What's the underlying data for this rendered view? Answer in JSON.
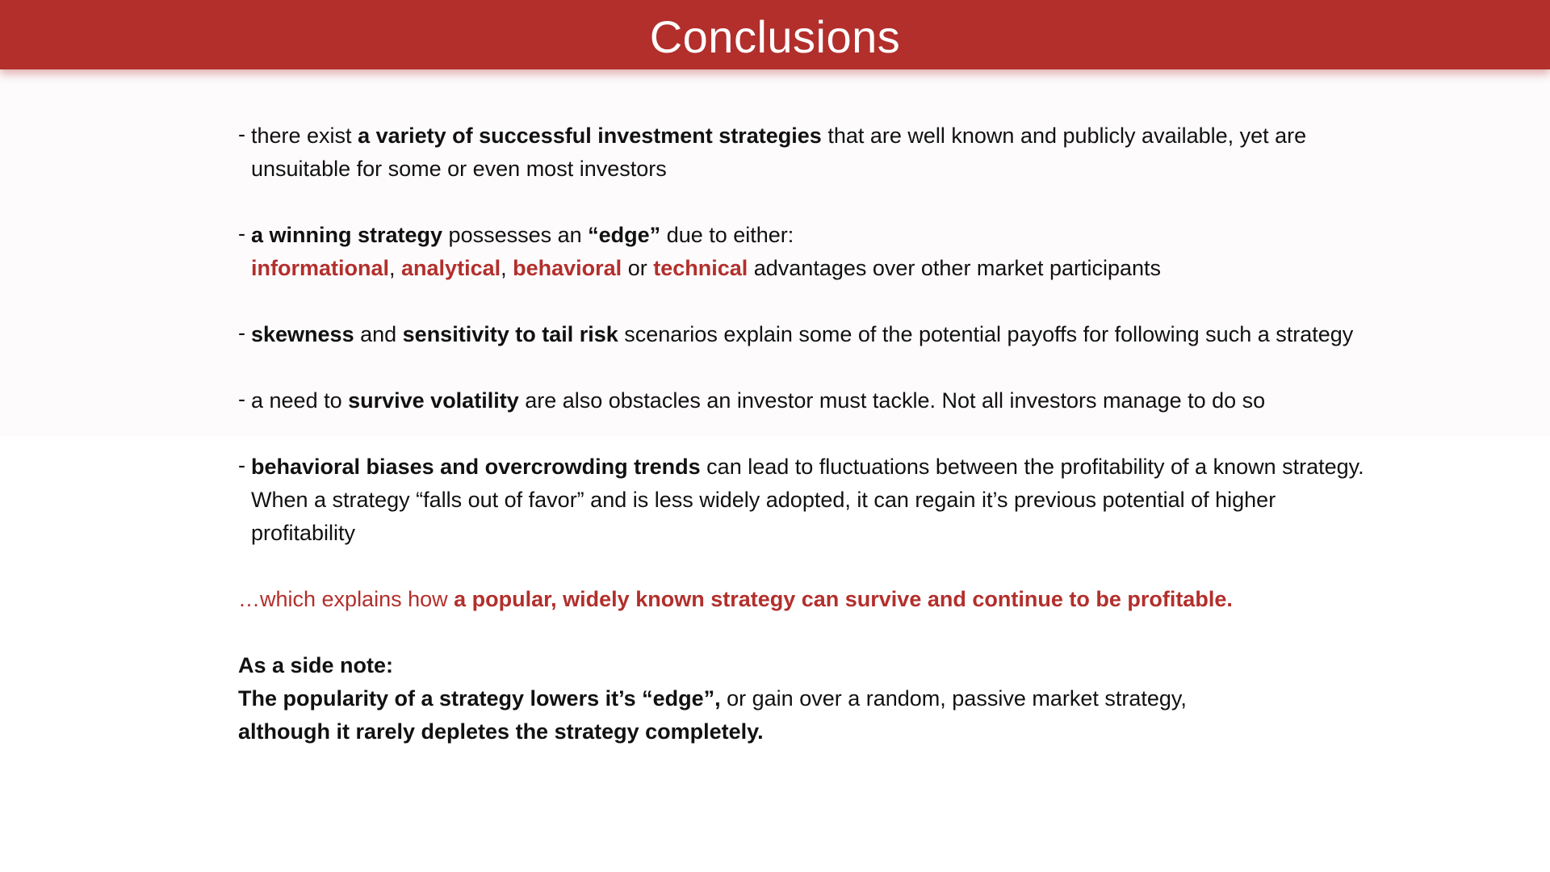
{
  "header": {
    "title": "Conclusions"
  },
  "colors": {
    "accent": "#b22f2c",
    "text": "#111111",
    "header_text": "#ffffff"
  },
  "bullets": [
    {
      "dash": "-",
      "parts": [
        "there exist ",
        "a variety of successful investment strategies",
        " that are well known and publicly available, yet are unsuitable for some or even most investors"
      ]
    },
    {
      "dash": "-",
      "parts": [
        "a winning strategy",
        " possesses an ",
        "“edge”",
        " due to either:",
        "informational",
        ", ",
        "analytical",
        ", ",
        "behavioral",
        " or ",
        "technical",
        " advantages over other market participants"
      ]
    },
    {
      "dash": "-",
      "parts": [
        "skewness",
        " and ",
        "sensitivity to tail risk",
        " scenarios explain some of the potential payoffs for following such a strategy"
      ]
    },
    {
      "dash": "-",
      "parts": [
        "a need to ",
        "survive volatility",
        " are also obstacles an investor must tackle. Not all investors manage to do so"
      ]
    },
    {
      "dash": "-",
      "parts": [
        "behavioral biases and overcrowding trends",
        " can lead to fluctuations between the profitability of a known strategy. When a strategy “falls out of favor” and is less widely adopted, it can regain it’s previous potential of higher profitability"
      ]
    }
  ],
  "conclusion": {
    "lead": "…which explains how ",
    "emphasis": "a popular, widely known strategy can survive and continue to be profitable."
  },
  "side_note": {
    "heading": "As a side note:",
    "line1_bold": "The popularity of a strategy lowers it’s “edge”,",
    "line1_rest": " or gain over a random, passive market strategy,",
    "line2_bold": "although it rarely depletes the strategy completely."
  }
}
